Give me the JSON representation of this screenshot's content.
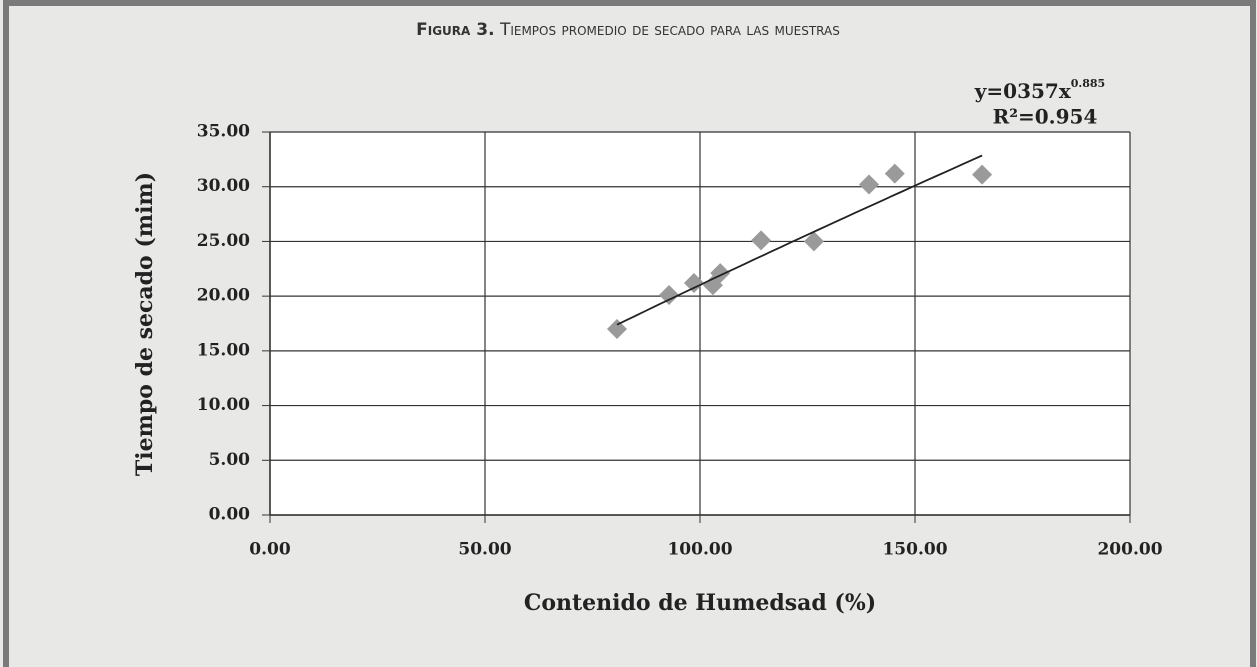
{
  "chart_data": {
    "type": "scatter",
    "figure_label": "Figura 3.",
    "title": "Tiempos promedio de secado para las muestras",
    "x_label": "Contenido de Humedsad (%)",
    "y_label": "Tiempo de secado (mim)",
    "x": [
      80.7,
      92.8,
      98.6,
      103,
      104.7,
      114.2,
      126.5,
      139.3,
      145.3,
      165.6
    ],
    "values": [
      17,
      20.1,
      21.2,
      21,
      22.1,
      25.1,
      25,
      30.2,
      31.2,
      31.1
    ],
    "color": "#9a9a9a",
    "trendline": {
      "equation": "y=0357x",
      "exponent_label": "0.885",
      "r2": "R²=0.954",
      "coefficient": 0.357,
      "exponent": 0.885,
      "color": "#222222"
    },
    "xlim": [
      0,
      200
    ],
    "xticks": [
      {
        "value": 0,
        "label": "0.00"
      },
      {
        "value": 50,
        "label": "50.00"
      },
      {
        "value": 100,
        "label": "100.00"
      },
      {
        "value": 150,
        "label": "150.00"
      },
      {
        "value": 200,
        "label": "200.00"
      }
    ],
    "ylim": [
      0,
      35
    ],
    "yticks": [
      {
        "value": 0,
        "label": "0.00"
      },
      {
        "value": 5,
        "label": "5.00"
      },
      {
        "value": 10,
        "label": "10.00"
      },
      {
        "value": 15,
        "label": "15.00"
      },
      {
        "value": 20,
        "label": "20.00"
      },
      {
        "value": 25,
        "label": "25.00"
      },
      {
        "value": 30,
        "label": "30.00"
      },
      {
        "value": 35,
        "label": "35.00"
      }
    ],
    "grid": true
  }
}
